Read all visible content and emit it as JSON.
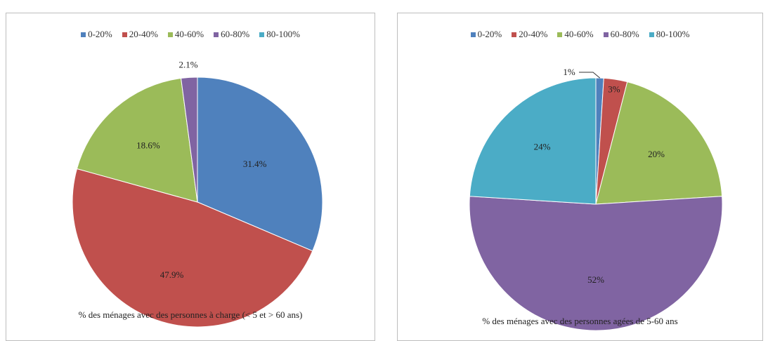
{
  "chart_data": [
    {
      "type": "pie",
      "categories": [
        "0-20%",
        "20-40%",
        "40-60%",
        "60-80%",
        "80-100%"
      ],
      "values": [
        31.4,
        47.9,
        18.6,
        2.1,
        0
      ],
      "labels": [
        "31.4%",
        "47.9%",
        "18.6%",
        "2.1%",
        ""
      ],
      "title": "% des ménages avec des personnes à charge (< 5 et > 60 ans)",
      "legend": "top",
      "colors": [
        "#4F81BD",
        "#C0504D",
        "#9BBB59",
        "#8064A2",
        "#4BACC6"
      ]
    },
    {
      "type": "pie",
      "categories": [
        "0-20%",
        "20-40%",
        "40-60%",
        "60-80%",
        "80-100%"
      ],
      "values": [
        1,
        3,
        20,
        52,
        24
      ],
      "labels": [
        "1%",
        "3%",
        "20%",
        "52%",
        "24%"
      ],
      "title": "% des ménages avec des personnes agées de 5-60 ans",
      "legend": "top",
      "colors": [
        "#4F81BD",
        "#C0504D",
        "#9BBB59",
        "#8064A2",
        "#4BACC6"
      ]
    }
  ]
}
